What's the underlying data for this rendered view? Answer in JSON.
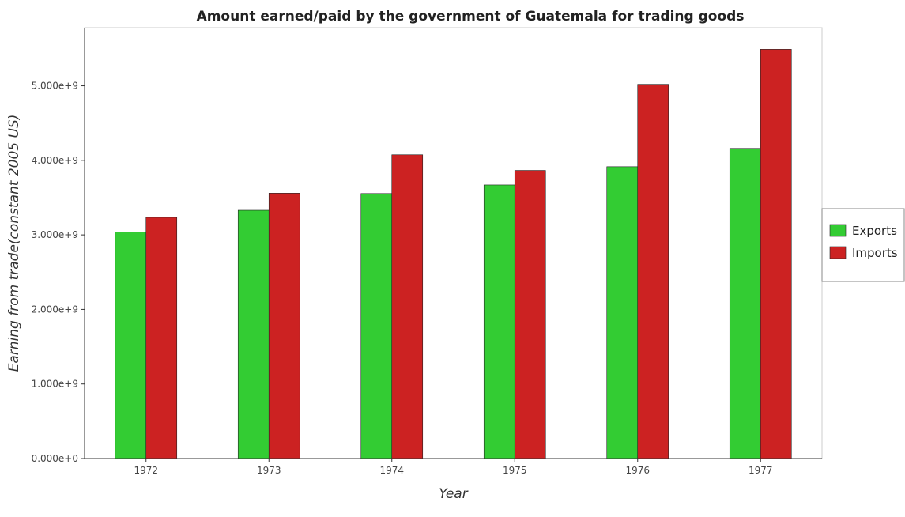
{
  "chart_data": {
    "type": "bar",
    "title": "Amount earned/paid by the government of Guatemala for trading goods",
    "xlabel": "Year",
    "ylabel": "Earning from trade(constant 2005 US)",
    "categories": [
      "1972",
      "1973",
      "1974",
      "1975",
      "1976",
      "1977"
    ],
    "series": [
      {
        "name": "Exports",
        "color": "#33cc33",
        "values": [
          3040000000,
          3330000000,
          3555000000,
          3670000000,
          3915000000,
          4160000000
        ]
      },
      {
        "name": "Imports",
        "color": "#cc2222",
        "values": [
          3235000000,
          3560000000,
          4075000000,
          3865000000,
          5020000000,
          5490000000
        ]
      }
    ],
    "yticks": [
      0,
      1000000000,
      2000000000,
      3000000000,
      4000000000,
      5000000000
    ],
    "ytick_labels": [
      "0.000e+0",
      "1.000e+9",
      "2.000e+9",
      "3.000e+9",
      "4.000e+9",
      "5.000e+9"
    ],
    "ylim": [
      0,
      5780000000
    ],
    "grid": false,
    "legend_position": "right"
  }
}
